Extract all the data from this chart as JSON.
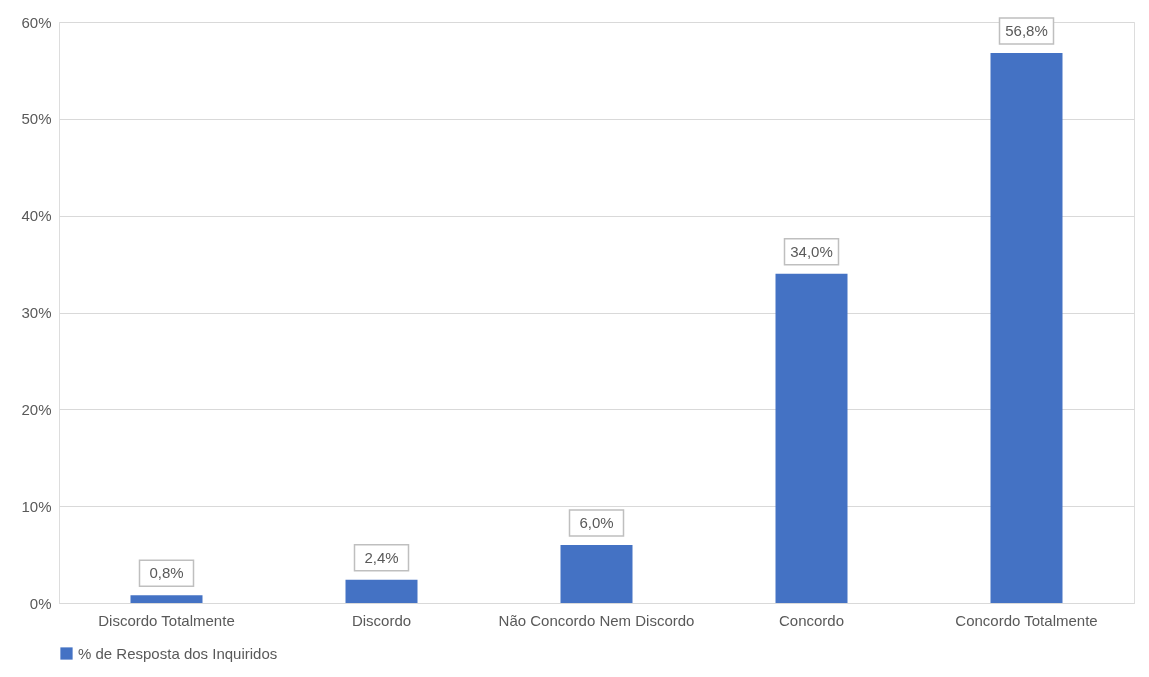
{
  "chart_data": {
    "type": "bar",
    "categories": [
      "Discordo Totalmente",
      "Discordo",
      "Não Concordo Nem Discordo",
      "Concordo",
      "Concordo Totalmente"
    ],
    "series": [
      {
        "name": "% de Resposta dos Inquiridos",
        "color": "#4472c4",
        "values": [
          0.8,
          2.4,
          6.0,
          34.0,
          56.8
        ],
        "value_labels": [
          "0,8%",
          "2,4%",
          "6,0%",
          "34,0%",
          "56,8%"
        ]
      }
    ],
    "ylim": [
      0,
      60
    ],
    "yticks": [
      {
        "value": 0,
        "label": "0%"
      },
      {
        "value": 10,
        "label": "10%"
      },
      {
        "value": 20,
        "label": "20%"
      },
      {
        "value": 30,
        "label": "30%"
      },
      {
        "value": 40,
        "label": "40%"
      },
      {
        "value": 50,
        "label": "50%"
      },
      {
        "value": 60,
        "label": "60%"
      }
    ],
    "grid": "y",
    "legend": "bottom"
  }
}
